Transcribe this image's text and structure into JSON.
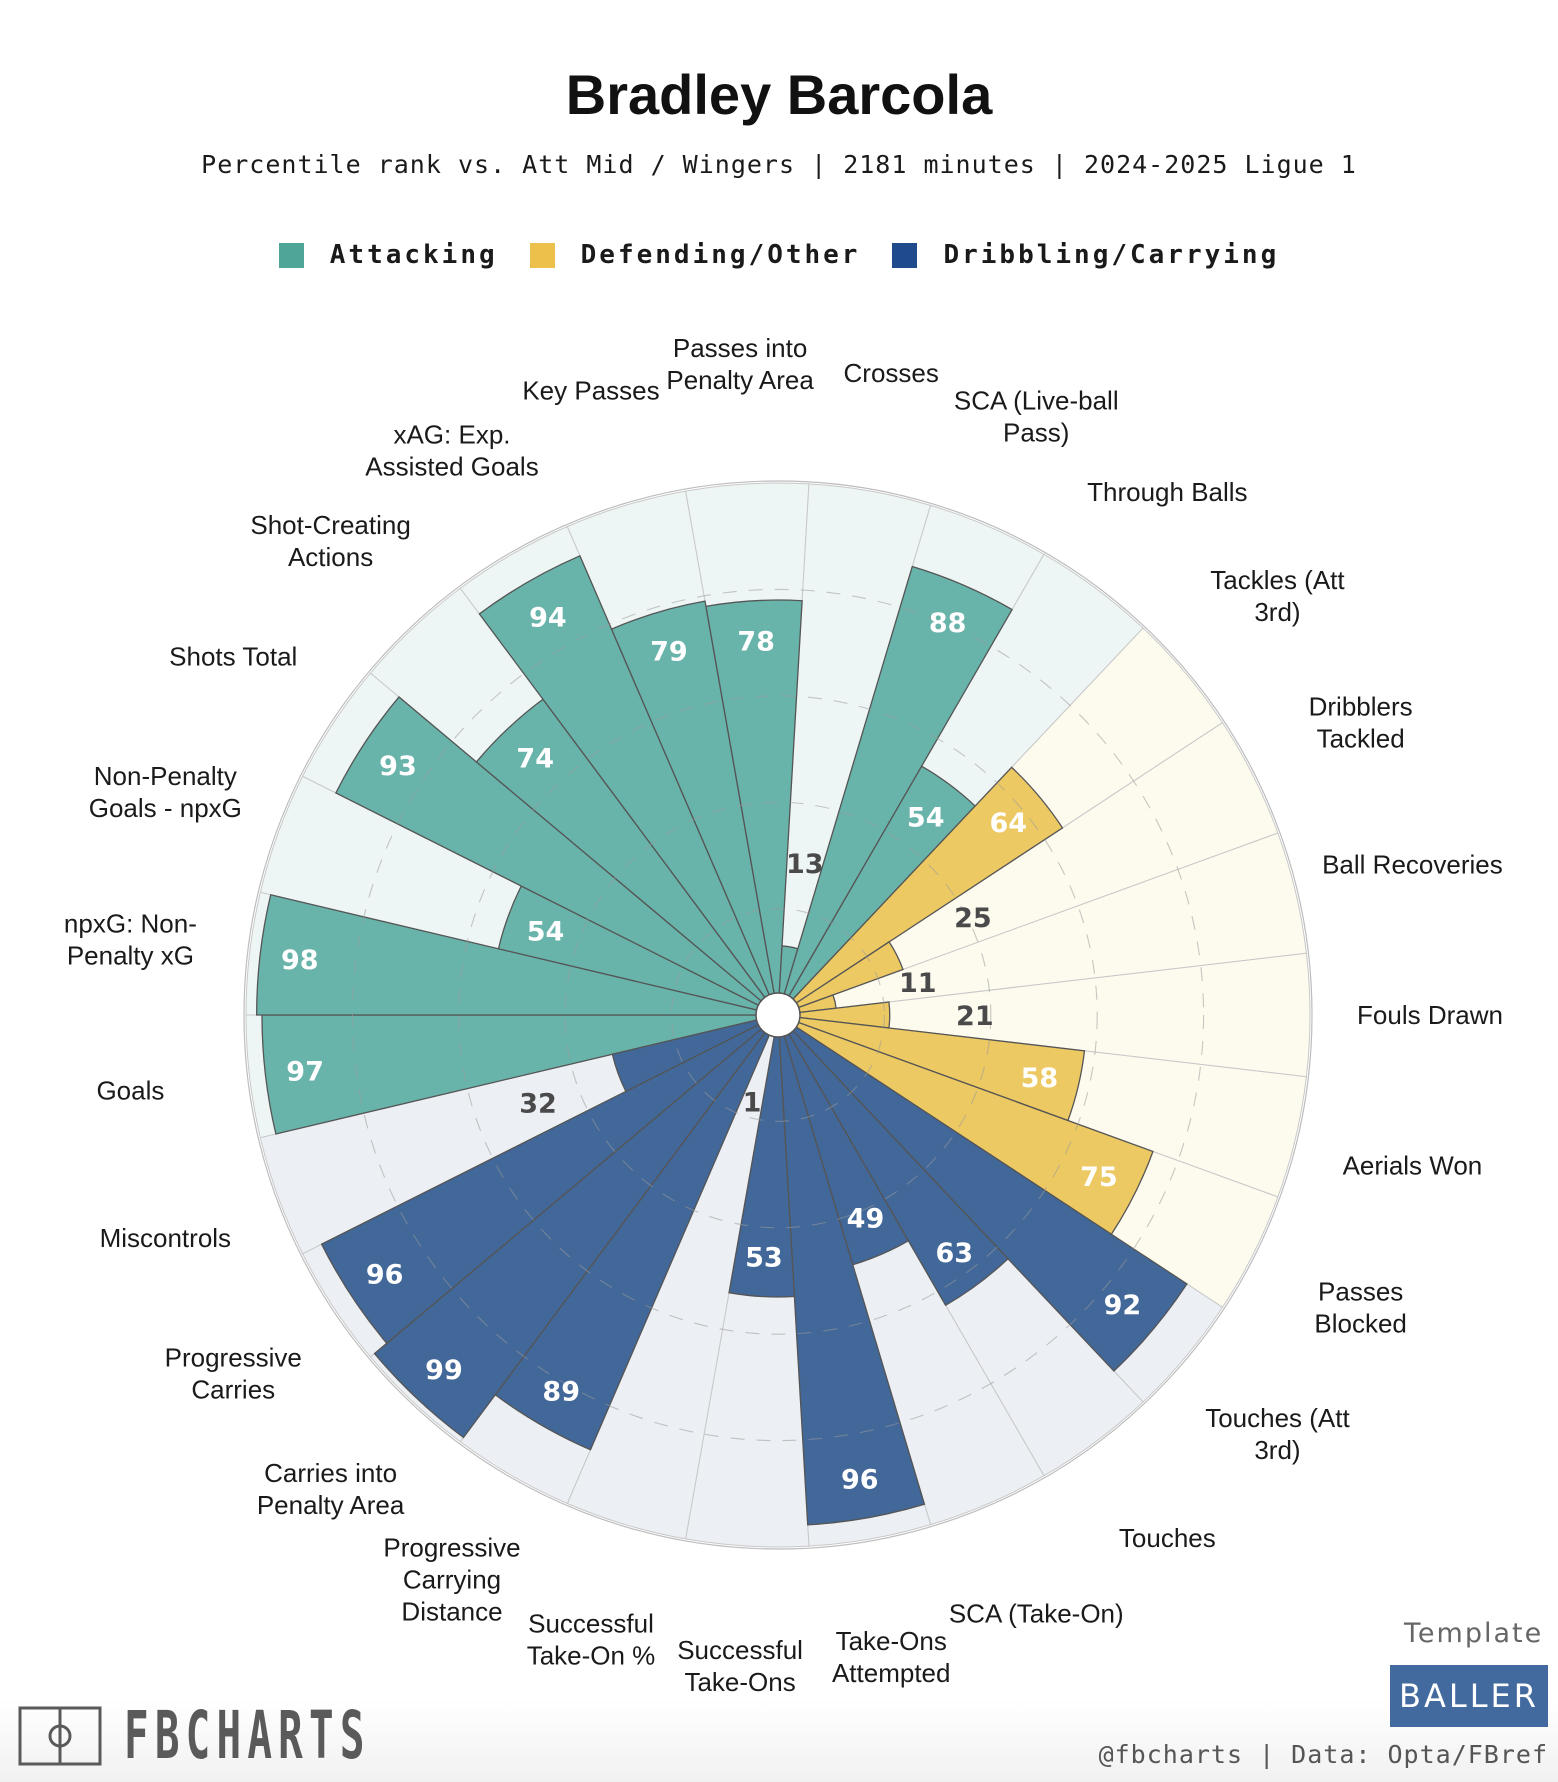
{
  "header": {
    "title": "Bradley Barcola",
    "subtitle": "Percentile rank vs. Att Mid / Wingers | 2181 minutes | 2024-2025 Ligue 1"
  },
  "legend": [
    {
      "label": "Attacking",
      "color": "#4fa597"
    },
    {
      "label": "Defending/Other",
      "color": "#ecc04a"
    },
    {
      "label": "Dribbling/Carrying",
      "color": "#1f4a8c"
    }
  ],
  "footer": {
    "logo_text": "FBCHARTS",
    "template_label": "Template",
    "template_name": "BALLER",
    "credit": "@fbcharts | Data: Opta/FBref"
  },
  "chart_data": {
    "type": "radial-bar",
    "title": "Bradley Barcola",
    "subtitle": "Percentile rank vs. Att Mid / Wingers | 2181 minutes | 2024-2025 Ligue 1",
    "value_range": [
      0,
      100
    ],
    "gridlines": [
      20,
      40,
      60,
      80
    ],
    "groups": {
      "Attacking": {
        "bar": "#68b3aa",
        "bg": "#eef6f5"
      },
      "Defending/Other": {
        "bar": "#edc963",
        "bg": "#fdfaee"
      },
      "Dribbling/Carrying": {
        "bar": "#426799",
        "bg": "#eceff4"
      }
    },
    "categories": [
      {
        "label": "Goals",
        "group": "Attacking",
        "value": 97
      },
      {
        "label": "npxG: Non-Penalty xG",
        "group": "Attacking",
        "value": 98
      },
      {
        "label": "Non-Penalty Goals - npxG",
        "group": "Attacking",
        "value": 54
      },
      {
        "label": "Shots Total",
        "group": "Attacking",
        "value": 93
      },
      {
        "label": "Shot-Creating Actions",
        "group": "Attacking",
        "value": 74
      },
      {
        "label": "xAG: Exp. Assisted Goals",
        "group": "Attacking",
        "value": 94
      },
      {
        "label": "Key Passes",
        "group": "Attacking",
        "value": 79
      },
      {
        "label": "Passes into Penalty Area",
        "group": "Attacking",
        "value": 78
      },
      {
        "label": "Crosses",
        "group": "Attacking",
        "value": 13
      },
      {
        "label": "SCA (Live-ball Pass)",
        "group": "Attacking",
        "value": 88
      },
      {
        "label": "Through Balls",
        "group": "Attacking",
        "value": 54
      },
      {
        "label": "Tackles (Att 3rd)",
        "group": "Defending/Other",
        "value": 64
      },
      {
        "label": "Dribblers Tackled",
        "group": "Defending/Other",
        "value": 25
      },
      {
        "label": "Ball Recoveries",
        "group": "Defending/Other",
        "value": 11
      },
      {
        "label": "Fouls Drawn",
        "group": "Defending/Other",
        "value": 21
      },
      {
        "label": "Aerials Won",
        "group": "Defending/Other",
        "value": 58
      },
      {
        "label": "Passes Blocked",
        "group": "Defending/Other",
        "value": 75
      },
      {
        "label": "Touches (Att 3rd)",
        "group": "Dribbling/Carrying",
        "value": 92
      },
      {
        "label": "Touches",
        "group": "Dribbling/Carrying",
        "value": 63
      },
      {
        "label": "SCA (Take-On)",
        "group": "Dribbling/Carrying",
        "value": 49
      },
      {
        "label": "Take-Ons Attempted",
        "group": "Dribbling/Carrying",
        "value": 96
      },
      {
        "label": "Successful Take-Ons",
        "group": "Dribbling/Carrying",
        "value": 53
      },
      {
        "label": "Successful Take-On %",
        "group": "Dribbling/Carrying",
        "value": 1
      },
      {
        "label": "Progressive Carrying Distance",
        "group": "Dribbling/Carrying",
        "value": 89
      },
      {
        "label": "Carries into Penalty Area",
        "group": "Dribbling/Carrying",
        "value": 99
      },
      {
        "label": "Progressive Carries",
        "group": "Dribbling/Carrying",
        "value": 96
      },
      {
        "label": "Miscontrols",
        "group": "Dribbling/Carrying",
        "value": 32
      }
    ],
    "category_label_lines": [
      [
        "Goals"
      ],
      [
        "npxG: Non-",
        "Penalty xG"
      ],
      [
        "Non-Penalty",
        "Goals - npxG"
      ],
      [
        "Shots Total"
      ],
      [
        "Shot-Creating",
        "Actions"
      ],
      [
        "xAG: Exp.",
        "Assisted Goals"
      ],
      [
        "Key Passes"
      ],
      [
        "Passes into",
        "Penalty Area"
      ],
      [
        "Crosses"
      ],
      [
        "SCA (Live-ball",
        "Pass)"
      ],
      [
        "Through Balls"
      ],
      [
        "Tackles (Att",
        "3rd)"
      ],
      [
        "Dribblers",
        "Tackled"
      ],
      [
        "Ball Recoveries"
      ],
      [
        "Fouls Drawn"
      ],
      [
        "Aerials Won"
      ],
      [
        "Passes",
        "Blocked"
      ],
      [
        "Touches (Att",
        "3rd)"
      ],
      [
        "Touches"
      ],
      [
        "SCA (Take-On)"
      ],
      [
        "Take-Ons",
        "Attempted"
      ],
      [
        "Successful",
        "Take-Ons"
      ],
      [
        "Successful",
        "Take-On %"
      ],
      [
        "Progressive",
        "Carrying",
        "Distance"
      ],
      [
        "Carries into",
        "Penalty Area"
      ],
      [
        "Progressive",
        "Carries"
      ],
      [
        "Miscontrols"
      ]
    ],
    "value_label_colors": {
      "inside": "#ffffff",
      "outside": "#4a4a4a"
    }
  }
}
